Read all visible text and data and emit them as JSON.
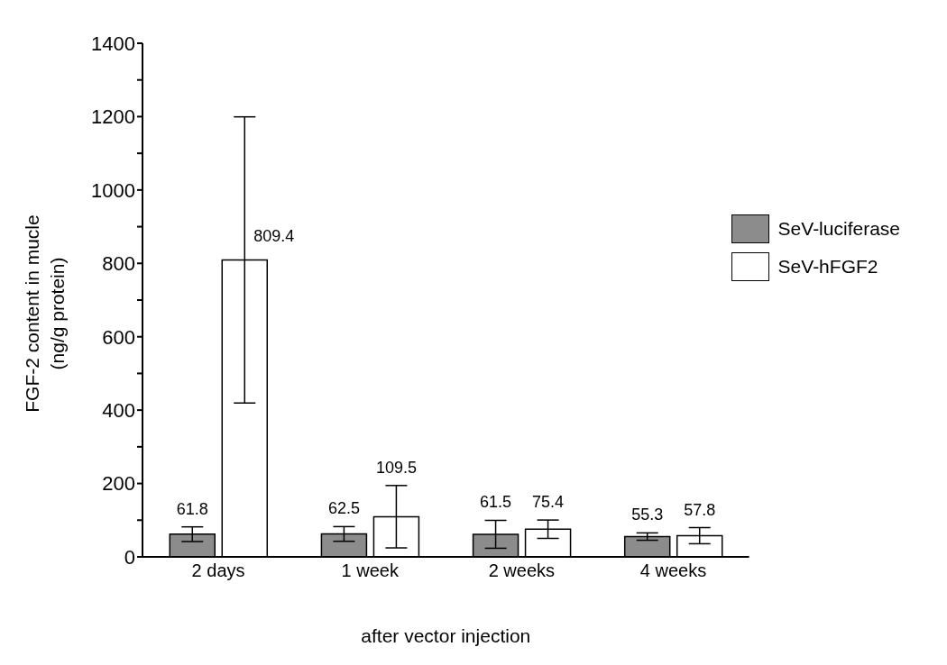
{
  "chart_data": {
    "type": "bar",
    "xlabel": "after vector injection",
    "ylabel": "FGF-2 content in mucle\n(ng/g protein)",
    "categories": [
      "2 days",
      "1 week",
      "2 weeks",
      "4 weeks"
    ],
    "series": [
      {
        "name": "SeV-luciferase",
        "color": "#8c8c8c",
        "values": [
          61.8,
          62.5,
          61.5,
          55.3
        ],
        "errors": [
          20,
          20,
          38,
          10
        ]
      },
      {
        "name": "SeV-hFGF2",
        "color": "#ffffff",
        "values": [
          809.4,
          109.5,
          75.4,
          57.8
        ],
        "errors": [
          390,
          85,
          25,
          22
        ]
      }
    ],
    "data_labels": true,
    "ylim": [
      0,
      1400
    ],
    "yticks": [
      0,
      {
        "value": 100,
        "label": null
      },
      200,
      {
        "value": 300,
        "label": null
      },
      400,
      {
        "value": 500,
        "label": null
      },
      600,
      {
        "value": 700,
        "label": null
      },
      800,
      {
        "value": 900,
        "label": null
      },
      1000,
      {
        "value": 1100,
        "label": null
      },
      1200,
      {
        "value": 1300,
        "label": null
      },
      1400
    ],
    "grid": false,
    "legend": "right"
  }
}
